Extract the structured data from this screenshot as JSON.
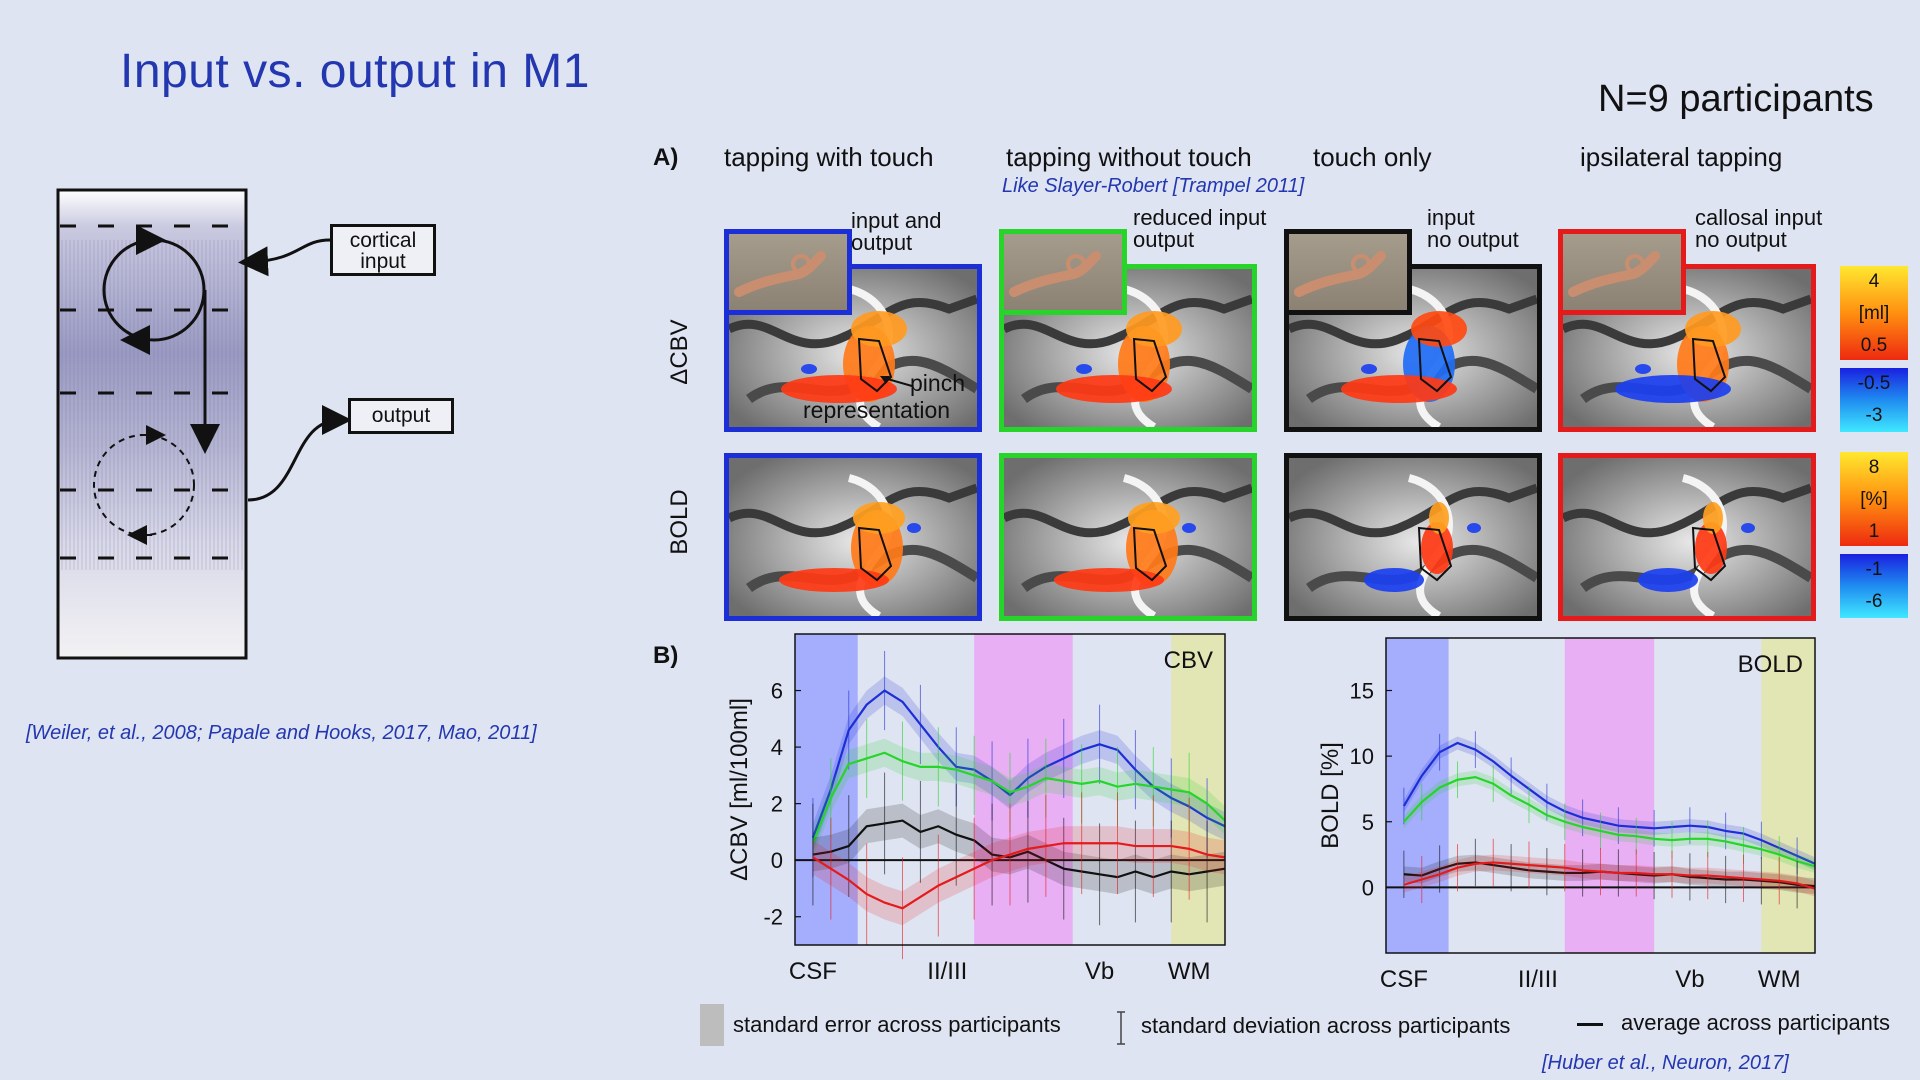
{
  "slide_title": "Input vs. output in M1",
  "participants": "N=9 participants",
  "left_figure": {
    "cortical_input_label": "cortical\ninput",
    "output_label": "output",
    "citation": "[Weiler, et al., 2008; Papale and Hooks, 2017, Mao, 2011]"
  },
  "panel_a": {
    "label": "A)",
    "conditions": [
      {
        "header": "tapping with touch",
        "description": "input and\noutput",
        "color": "#1c2fd6"
      },
      {
        "header": "tapping without touch",
        "description": "reduced input\noutput",
        "color": "#27d42a"
      },
      {
        "header": "touch only",
        "description": "input\nno output",
        "color": "#111111"
      },
      {
        "header": "ipsilateral tapping",
        "description": "callosal input\nno output",
        "color": "#e51a1a"
      }
    ],
    "note": "Like Slayer-Robert [Trampel 2011]",
    "annotation_top": "pinch",
    "annotation_bottom": "representation",
    "row_labels": [
      "ΔCBV",
      "BOLD"
    ],
    "cbv_scale": {
      "pos_top": "4",
      "pos_unit": "[ml]",
      "pos_bottom": "0.5",
      "neg_top": "-0.5",
      "neg_bottom": "-3"
    },
    "bold_scale": {
      "pos_top": "8",
      "pos_unit": "[%]",
      "pos_bottom": "1",
      "neg_top": "-1",
      "neg_bottom": "-6"
    }
  },
  "panel_b": {
    "label": "B)"
  },
  "legend": {
    "se": "standard error across participants",
    "sd": "standard deviation across participants",
    "avg": "average across participants"
  },
  "bottom_citation": "[Huber et al., Neuron, 2017]",
  "chart_data": [
    {
      "type": "line",
      "title": "CBV",
      "xlabel": "",
      "ylabel": "ΔCBV [ml/100ml]",
      "x_ticks": [
        "CSF",
        "II/III",
        "Vb",
        "WM"
      ],
      "x_tick_positions": [
        1,
        8.5,
        17,
        22
      ],
      "xlim": [
        0,
        24
      ],
      "ylim": [
        -3,
        8
      ],
      "y_ticks": [
        -2,
        0,
        2,
        4,
        6
      ],
      "shaded_layers": [
        {
          "from": 0,
          "to": 3.5,
          "color": "#9aa5ff"
        },
        {
          "from": 10,
          "to": 15.5,
          "color": "#eba6f5"
        },
        {
          "from": 21,
          "to": 24,
          "color": "#e3e6a9"
        }
      ],
      "x": [
        1,
        2,
        3,
        4,
        5,
        6,
        7,
        8,
        9,
        10,
        11,
        12,
        13,
        14,
        15,
        16,
        17,
        18,
        19,
        20,
        21,
        22,
        23,
        24
      ],
      "series": [
        {
          "name": "tapping with touch",
          "color": "#1c2fd6",
          "values": [
            0.8,
            2.5,
            4.6,
            5.5,
            6.0,
            5.6,
            4.8,
            4.0,
            3.3,
            3.2,
            2.8,
            2.3,
            2.9,
            3.3,
            3.6,
            3.9,
            4.1,
            3.9,
            3.2,
            2.6,
            2.2,
            1.9,
            1.5,
            1.2
          ]
        },
        {
          "name": "tapping without touch",
          "color": "#27d42a",
          "values": [
            0.6,
            2.2,
            3.4,
            3.6,
            3.8,
            3.5,
            3.3,
            3.3,
            3.2,
            3.0,
            2.8,
            2.4,
            2.6,
            2.9,
            2.8,
            2.7,
            2.8,
            2.6,
            2.7,
            2.6,
            2.5,
            2.4,
            2.0,
            1.4
          ]
        },
        {
          "name": "touch only",
          "color": "#111111",
          "values": [
            0.2,
            0.3,
            0.5,
            1.2,
            1.3,
            1.4,
            1.0,
            1.2,
            0.9,
            0.7,
            0.2,
            0.1,
            0.3,
            0.0,
            -0.3,
            -0.4,
            -0.5,
            -0.6,
            -0.4,
            -0.6,
            -0.4,
            -0.5,
            -0.4,
            -0.3
          ]
        },
        {
          "name": "ipsilateral tapping",
          "color": "#e51a1a",
          "values": [
            0.1,
            -0.3,
            -0.7,
            -1.2,
            -1.5,
            -1.7,
            -1.3,
            -0.9,
            -0.6,
            -0.3,
            0.0,
            0.2,
            0.4,
            0.5,
            0.6,
            0.6,
            0.6,
            0.6,
            0.5,
            0.5,
            0.5,
            0.4,
            0.2,
            0.1
          ]
        }
      ]
    },
    {
      "type": "line",
      "title": "BOLD",
      "xlabel": "",
      "ylabel": "BOLD [%]",
      "x_ticks": [
        "CSF",
        "II/III",
        "Vb",
        "WM"
      ],
      "x_tick_positions": [
        1,
        8.5,
        17,
        22
      ],
      "xlim": [
        0,
        24
      ],
      "ylim": [
        -5,
        19
      ],
      "y_ticks": [
        0,
        5,
        10,
        15
      ],
      "shaded_layers": [
        {
          "from": 0,
          "to": 3.5,
          "color": "#9aa5ff"
        },
        {
          "from": 10,
          "to": 15,
          "color": "#eba6f5"
        },
        {
          "from": 21,
          "to": 24,
          "color": "#e3e6a9"
        }
      ],
      "x": [
        1,
        2,
        3,
        4,
        5,
        6,
        7,
        8,
        9,
        10,
        11,
        12,
        13,
        14,
        15,
        16,
        17,
        18,
        19,
        20,
        21,
        22,
        23,
        24
      ],
      "series": [
        {
          "name": "tapping with touch",
          "color": "#1c2fd6",
          "values": [
            6.2,
            8.5,
            10.3,
            11.0,
            10.5,
            9.6,
            8.5,
            7.5,
            6.5,
            5.8,
            5.3,
            5.0,
            4.7,
            4.6,
            4.5,
            4.6,
            4.7,
            4.6,
            4.3,
            4.1,
            3.6,
            3.0,
            2.4,
            1.8
          ]
        },
        {
          "name": "tapping without touch",
          "color": "#27d42a",
          "values": [
            5.0,
            6.5,
            7.6,
            8.2,
            8.4,
            7.9,
            7.0,
            6.3,
            5.5,
            5.0,
            4.6,
            4.3,
            4.0,
            3.9,
            3.7,
            3.6,
            3.7,
            3.7,
            3.5,
            3.2,
            2.9,
            2.5,
            2.0,
            1.6
          ]
        },
        {
          "name": "touch only",
          "color": "#111111",
          "values": [
            1.0,
            0.9,
            1.4,
            1.8,
            1.9,
            1.7,
            1.5,
            1.3,
            1.2,
            1.1,
            1.1,
            1.2,
            1.1,
            1.0,
            0.9,
            1.0,
            0.8,
            0.7,
            0.6,
            0.6,
            0.5,
            0.4,
            0.2,
            0.1
          ]
        },
        {
          "name": "ipsilateral tapping",
          "color": "#e51a1a",
          "values": [
            0.2,
            0.6,
            1.0,
            1.5,
            1.8,
            1.9,
            1.8,
            1.7,
            1.6,
            1.5,
            1.3,
            1.2,
            1.1,
            1.1,
            1.0,
            1.0,
            0.9,
            0.9,
            0.8,
            0.7,
            0.6,
            0.5,
            0.3,
            -0.1
          ]
        }
      ]
    }
  ]
}
